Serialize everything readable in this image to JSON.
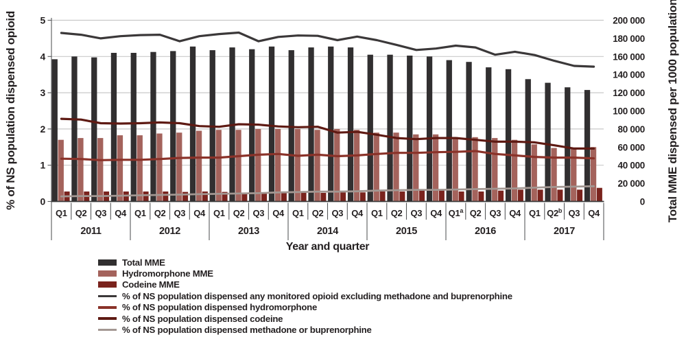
{
  "figure": {
    "left_axis": {
      "title": "% of NS population dispensed opioid",
      "tick_labels": [
        "0",
        "1",
        "2",
        "3",
        "4",
        "5"
      ],
      "min": 0,
      "max": 5
    },
    "right_axis": {
      "title": "Total MME dispensed per 1000 population",
      "tick_labels": [
        "0",
        "20 000",
        "40 000",
        "60 000",
        "80 000",
        "100 000",
        "120 000",
        "140 000",
        "160 000",
        "180 000",
        "200 000"
      ],
      "min": 0,
      "max": 200000
    },
    "x_axis": {
      "title": "Year and quarter",
      "years": [
        {
          "label": "2011",
          "quarters": [
            {
              "q": "Q1"
            },
            {
              "q": "Q2"
            },
            {
              "q": "Q3"
            },
            {
              "q": "Q4"
            }
          ]
        },
        {
          "label": "2012",
          "quarters": [
            {
              "q": "Q1"
            },
            {
              "q": "Q2"
            },
            {
              "q": "Q3"
            },
            {
              "q": "Q4"
            }
          ]
        },
        {
          "label": "2013",
          "quarters": [
            {
              "q": "Q1"
            },
            {
              "q": "Q2"
            },
            {
              "q": "Q3"
            },
            {
              "q": "Q4"
            }
          ]
        },
        {
          "label": "2014",
          "quarters": [
            {
              "q": "Q1"
            },
            {
              "q": "Q2"
            },
            {
              "q": "Q3"
            },
            {
              "q": "Q4"
            }
          ]
        },
        {
          "label": "2015",
          "quarters": [
            {
              "q": "Q1"
            },
            {
              "q": "Q2"
            },
            {
              "q": "Q3"
            },
            {
              "q": "Q4"
            }
          ]
        },
        {
          "label": "2016",
          "quarters": [
            {
              "q": "Q1",
              "sup": "a"
            },
            {
              "q": "Q2"
            },
            {
              "q": "Q3"
            },
            {
              "q": "Q4"
            }
          ]
        },
        {
          "label": "2017",
          "quarters": [
            {
              "q": "Q1"
            },
            {
              "q": "Q2",
              "sup": "b"
            },
            {
              "q": "Q3"
            },
            {
              "q": "Q4"
            }
          ]
        }
      ]
    }
  },
  "colors": {
    "total_bar": "#312f30",
    "hydromorphone_bar": "#a4635c",
    "codeine_bar": "#7a231d",
    "pct_any_line": "#3b3839",
    "pct_hydromorphone_line": "#8a3229",
    "pct_codeine_line": "#5e1a13",
    "pct_methadone_line": "#a39792",
    "gridline": "#c9c9c9",
    "axis": "#58595b",
    "text": "#231f20"
  },
  "legend": {
    "items": [
      {
        "label": "Total MME",
        "swatch": "bar",
        "color_key": "total_bar"
      },
      {
        "label": "Hydromorphone MME",
        "swatch": "bar",
        "color_key": "hydromorphone_bar"
      },
      {
        "label": "Codeine MME",
        "swatch": "bar",
        "color_key": "codeine_bar"
      },
      {
        "label": "% of NS population dispensed any monitored opioid excluding methadone and buprenorphine",
        "swatch": "line",
        "color_key": "pct_any_line"
      },
      {
        "label": "% of NS population dispensed hydromorphone",
        "swatch": "line",
        "color_key": "pct_hydromorphone_line"
      },
      {
        "label": "% of NS population dispensed codeine",
        "swatch": "line",
        "color_key": "pct_codeine_line"
      },
      {
        "label": "% of NS population dispensed methadone or buprenorphine",
        "swatch": "line",
        "color_key": "pct_methadone_line"
      }
    ]
  },
  "chart_data": {
    "type": "combo",
    "x_categories": [
      "2011 Q1",
      "2011 Q2",
      "2011 Q3",
      "2011 Q4",
      "2012 Q1",
      "2012 Q2",
      "2012 Q3",
      "2012 Q4",
      "2013 Q1",
      "2013 Q2",
      "2013 Q3",
      "2013 Q4",
      "2014 Q1",
      "2014 Q2",
      "2014 Q3",
      "2014 Q4",
      "2015 Q1",
      "2015 Q2",
      "2015 Q3",
      "2015 Q4",
      "2016 Q1a",
      "2016 Q2",
      "2016 Q3",
      "2016 Q4",
      "2017 Q1",
      "2017 Q2b",
      "2017 Q3",
      "2017 Q4"
    ],
    "left_ylim": [
      0,
      5
    ],
    "right_ylim": [
      0,
      200000
    ],
    "grid": true,
    "legend_position": "bottom-left",
    "series": [
      {
        "name": "Total MME",
        "type": "bar",
        "axis": "right",
        "color_key": "total_bar",
        "values": [
          157000,
          160000,
          159000,
          164000,
          164000,
          165000,
          166000,
          171000,
          167000,
          170000,
          168000,
          171000,
          167000,
          170000,
          171000,
          170000,
          162000,
          162000,
          161000,
          160000,
          156000,
          154000,
          148000,
          146000,
          135000,
          131000,
          126000,
          123000
        ]
      },
      {
        "name": "Hydromorphone MME",
        "type": "bar",
        "axis": "right",
        "color_key": "hydromorphone_bar",
        "values": [
          68000,
          70000,
          70000,
          73000,
          73000,
          75000,
          76000,
          78000,
          79000,
          79000,
          80000,
          80000,
          80000,
          79000,
          80000,
          79000,
          76000,
          76000,
          74000,
          74000,
          71000,
          71000,
          70000,
          68000,
          63000,
          59000,
          58000,
          60000
        ]
      },
      {
        "name": "Codeine MME",
        "type": "bar",
        "axis": "right",
        "color_key": "codeine_bar",
        "values": [
          11000,
          11000,
          11000,
          11000,
          11000,
          11000,
          10500,
          11000,
          10500,
          9000,
          9000,
          9500,
          9500,
          9500,
          10000,
          10000,
          11000,
          11000,
          12000,
          12000,
          11000,
          11000,
          12000,
          13000,
          13000,
          13000,
          13000,
          15000
        ]
      },
      {
        "name": "% of NS population dispensed any monitored opioid excluding methadone and buprenorphine",
        "type": "line",
        "axis": "left",
        "color_key": "pct_any_line",
        "width": 3.2,
        "values": [
          4.65,
          4.6,
          4.5,
          4.56,
          4.59,
          4.6,
          4.42,
          4.56,
          4.62,
          4.66,
          4.42,
          4.54,
          4.58,
          4.57,
          4.45,
          4.55,
          4.45,
          4.32,
          4.18,
          4.22,
          4.3,
          4.25,
          4.05,
          4.13,
          4.04,
          3.88,
          3.74,
          3.72
        ]
      },
      {
        "name": "% of NS population dispensed hydromorphone",
        "type": "line",
        "axis": "left",
        "color_key": "pct_hydromorphone_line",
        "width": 3.2,
        "values": [
          1.18,
          1.17,
          1.14,
          1.15,
          1.15,
          1.17,
          1.2,
          1.21,
          1.21,
          1.25,
          1.29,
          1.31,
          1.26,
          1.29,
          1.25,
          1.27,
          1.31,
          1.34,
          1.34,
          1.36,
          1.37,
          1.39,
          1.31,
          1.27,
          1.23,
          1.21,
          1.21,
          1.19
        ]
      },
      {
        "name": "% of NS population dispensed codeine",
        "type": "line",
        "axis": "left",
        "color_key": "pct_codeine_line",
        "width": 3.2,
        "values": [
          2.28,
          2.26,
          2.16,
          2.15,
          2.16,
          2.18,
          2.16,
          2.08,
          2.06,
          2.13,
          2.12,
          2.07,
          2.05,
          2.06,
          1.9,
          1.92,
          1.84,
          1.75,
          1.72,
          1.75,
          1.75,
          1.7,
          1.65,
          1.65,
          1.63,
          1.55,
          1.46,
          1.46
        ]
      },
      {
        "name": "% of NS population dispensed methadone or buprenorphine",
        "type": "line",
        "axis": "left",
        "color_key": "pct_methadone_line",
        "width": 2.8,
        "values": [
          0.14,
          0.15,
          0.15,
          0.16,
          0.17,
          0.18,
          0.19,
          0.2,
          0.21,
          0.22,
          0.23,
          0.25,
          0.26,
          0.27,
          0.27,
          0.28,
          0.3,
          0.31,
          0.32,
          0.32,
          0.33,
          0.34,
          0.35,
          0.36,
          0.38,
          0.4,
          0.41,
          0.42
        ]
      }
    ]
  }
}
